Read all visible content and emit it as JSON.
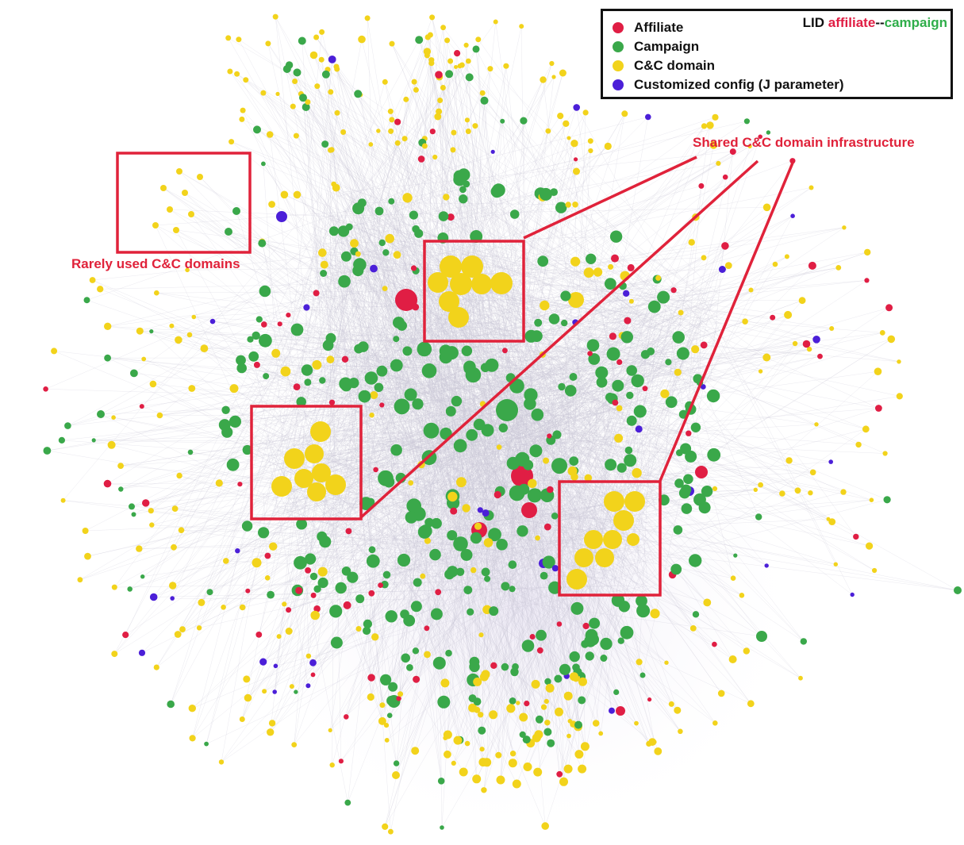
{
  "legend": {
    "items": [
      {
        "label": "Affiliate",
        "color": "#e01e44"
      },
      {
        "label": "Campaign",
        "color": "#3aa84a"
      },
      {
        "label": "C&C domain",
        "color": "#f2d31b"
      },
      {
        "label": "Customized config (J parameter)",
        "color": "#4b1fd8"
      }
    ],
    "title": {
      "prefix": "LID ",
      "part1": "affiliate",
      "separator": "--",
      "part2": "campaign"
    }
  },
  "annotations": {
    "shared": "Shared C&C domain infrastructure",
    "rare": "Rarely used C&C domains"
  },
  "colors": {
    "affiliate": "#e01e44",
    "campaign": "#3aa84a",
    "cnc": "#f2d31b",
    "config": "#4b1fd8",
    "highlight": "#e0223a",
    "edge": "#c9c4d6"
  }
}
